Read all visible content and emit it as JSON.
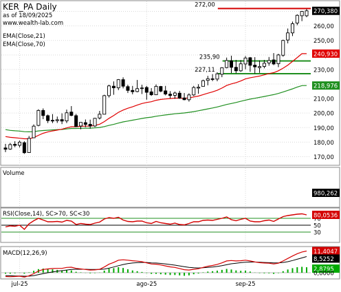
{
  "header": {
    "symbol": "KER_PA Daily",
    "as_of": "as of 18/09/2025",
    "website": "www.wealth-lab.com"
  },
  "colors": {
    "up": "#000000",
    "down": "#000000",
    "ema_fast": "#e00000",
    "ema_slow": "#1f8f1f",
    "volume": "#00aa00",
    "rsi": "#d40000",
    "macd": "#d40000",
    "macd_signal": "#000000",
    "hist": "#00aa00",
    "level_red": "#d40000",
    "level_green": "#1f8f1f",
    "price_badge_bg": "#000000",
    "ema21_badge_bg": "#e00000",
    "ema70_badge_bg": "#1f8f1f"
  },
  "chart_data": [
    {
      "type": "candlestick",
      "title": "KER_PA Daily",
      "ylim": [
        165,
        275
      ],
      "yticks": [
        "270,00",
        "260,00",
        "250,00",
        "240,00",
        "230,00",
        "220,00",
        "210,00",
        "200,00",
        "190,00",
        "180,00",
        "170,00"
      ],
      "ytick_values": [
        270,
        260,
        250,
        240,
        230,
        220,
        210,
        200,
        190,
        180,
        170
      ],
      "x_labels": [
        "jul-25",
        "ago-25",
        "sep-25"
      ],
      "x_label_bar_index": [
        3,
        30,
        51
      ],
      "current_price_label": "270,380",
      "ema21_label": "240,930",
      "ema70_label": "218,976",
      "legend": [
        "EMA(Close,21)",
        "EMA(Close,70)"
      ],
      "levels": [
        {
          "label": "272,00",
          "value": 272.0,
          "color": "red"
        },
        {
          "label": "235,90",
          "value": 235.9,
          "color": "green"
        },
        {
          "label": "227,11",
          "value": 227.11,
          "color": "green"
        }
      ],
      "ohlc": [
        [
          176.0,
          178.8,
          173.1,
          175.1
        ],
        [
          175.2,
          179.4,
          174.7,
          178.3
        ],
        [
          178.5,
          180.6,
          176.5,
          177.8
        ],
        [
          177.8,
          181.0,
          176.3,
          180.0
        ],
        [
          179.6,
          180.6,
          171.9,
          172.7
        ],
        [
          172.8,
          184.2,
          172.7,
          182.6
        ],
        [
          183.0,
          192.2,
          183.0,
          191.0
        ],
        [
          191.5,
          202.6,
          190.9,
          201.8
        ],
        [
          201.8,
          203.2,
          195.8,
          198.3
        ],
        [
          198.2,
          199.0,
          193.1,
          194.8
        ],
        [
          195.0,
          199.3,
          193.1,
          194.9
        ],
        [
          194.8,
          197.6,
          193.2,
          195.4
        ],
        [
          195.5,
          199.8,
          192.4,
          194.5
        ],
        [
          194.6,
          202.4,
          193.1,
          200.2
        ],
        [
          200.7,
          204.8,
          197.8,
          198.4
        ],
        [
          198.2,
          199.4,
          190.5,
          190.7
        ],
        [
          191.1,
          193.7,
          188.8,
          193.6
        ],
        [
          193.4,
          195.6,
          190.3,
          192.2
        ],
        [
          192.3,
          195.5,
          189.3,
          191.1
        ],
        [
          191.1,
          196.7,
          190.3,
          196.4
        ],
        [
          196.6,
          201.5,
          195.6,
          199.2
        ],
        [
          199.2,
          212.6,
          199.2,
          212.0
        ],
        [
          212.0,
          219.5,
          210.7,
          218.7
        ],
        [
          218.5,
          221.8,
          212.6,
          217.4
        ],
        [
          217.4,
          223.4,
          215.8,
          223.0
        ],
        [
          223.0,
          224.6,
          217.0,
          218.5
        ],
        [
          218.2,
          219.5,
          213.8,
          215.6
        ],
        [
          215.6,
          218.7,
          212.9,
          214.7
        ],
        [
          214.8,
          222.8,
          214.3,
          216.8
        ],
        [
          216.9,
          219.5,
          213.1,
          217.3
        ],
        [
          217.6,
          218.7,
          209.2,
          214.3
        ],
        [
          214.6,
          217.2,
          211.8,
          212.6
        ],
        [
          212.6,
          219.7,
          212.6,
          218.4
        ],
        [
          218.3,
          218.7,
          214.3,
          215.1
        ],
        [
          215.3,
          218.7,
          212.2,
          213.1
        ],
        [
          213.0,
          215.1,
          210.2,
          212.1
        ],
        [
          212.2,
          214.8,
          209.8,
          213.8
        ],
        [
          213.7,
          215.3,
          209.8,
          210.3
        ],
        [
          210.4,
          213.8,
          208.8,
          209.2
        ],
        [
          209.2,
          213.6,
          207.9,
          212.5
        ],
        [
          212.5,
          218.7,
          211.7,
          217.6
        ],
        [
          217.2,
          219.9,
          213.3,
          217.8
        ],
        [
          218.4,
          223.0,
          218.4,
          222.3
        ],
        [
          222.5,
          225.6,
          219.1,
          223.6
        ],
        [
          223.6,
          226.8,
          222.0,
          223.4
        ],
        [
          223.4,
          228.1,
          221.9,
          227.0
        ],
        [
          226.7,
          231.6,
          224.7,
          231.2
        ],
        [
          231.3,
          238.2,
          230.8,
          236.2
        ],
        [
          236.0,
          239.5,
          227.6,
          231.5
        ],
        [
          231.5,
          236.6,
          227.4,
          229.1
        ],
        [
          229.1,
          236.5,
          228.4,
          233.9
        ],
        [
          233.8,
          239.2,
          230.2,
          237.9
        ],
        [
          238.1,
          238.6,
          228.4,
          232.9
        ],
        [
          233.0,
          238.5,
          227.2,
          231.8
        ],
        [
          231.3,
          236.3,
          227.7,
          232.0
        ],
        [
          232.1,
          236.6,
          230.8,
          234.3
        ],
        [
          234.5,
          238.6,
          232.6,
          236.2
        ],
        [
          236.6,
          241.3,
          233.0,
          233.8
        ],
        [
          234.0,
          240.8,
          231.6,
          240.0
        ],
        [
          239.8,
          250.5,
          238.8,
          250.0
        ],
        [
          250.3,
          258.2,
          248.0,
          255.2
        ],
        [
          255.2,
          263.0,
          253.0,
          261.5
        ],
        [
          262.0,
          268.0,
          260.5,
          267.3
        ],
        [
          267.0,
          270.3,
          263.3,
          270.0
        ],
        [
          267.0,
          271.7,
          266.0,
          270.38
        ]
      ],
      "ema21": [
        183.8,
        183.3,
        183.0,
        182.7,
        182.3,
        182.3,
        183.1,
        184.7,
        186.1,
        187.0,
        187.7,
        188.3,
        188.9,
        189.8,
        190.6,
        190.6,
        190.9,
        191.0,
        191.0,
        191.5,
        192.3,
        194.1,
        196.4,
        198.3,
        200.5,
        202.1,
        203.3,
        204.3,
        205.5,
        206.6,
        207.3,
        207.8,
        208.8,
        209.4,
        209.7,
        210.0,
        210.3,
        210.3,
        210.2,
        210.4,
        211.1,
        211.7,
        212.7,
        213.7,
        214.6,
        215.7,
        217.2,
        219.0,
        220.1,
        220.9,
        222.1,
        223.5,
        224.3,
        224.9,
        225.5,
        226.3,
        227.2,
        227.8,
        229.1,
        230.9,
        233.0,
        235.6,
        238.2,
        240.9,
        240.93
      ],
      "ema70": [
        188.6,
        188.1,
        187.8,
        187.6,
        187.2,
        187.1,
        187.2,
        187.7,
        188.0,
        188.2,
        188.4,
        188.6,
        188.7,
        189.1,
        189.4,
        189.4,
        189.5,
        189.6,
        189.6,
        189.8,
        190.1,
        190.7,
        191.5,
        192.2,
        193.1,
        193.9,
        194.5,
        195.1,
        195.7,
        196.3,
        196.8,
        197.2,
        197.8,
        198.3,
        198.7,
        199.1,
        199.5,
        199.8,
        200.1,
        200.5,
        201.0,
        201.6,
        202.2,
        202.9,
        203.5,
        204.2,
        205.0,
        205.9,
        206.6,
        207.3,
        208.1,
        208.9,
        209.6,
        210.2,
        210.8,
        211.4,
        212.1,
        212.7,
        213.5,
        214.5,
        215.6,
        216.7,
        217.9,
        218.9,
        218.976
      ]
    },
    {
      "type": "bar",
      "title": "Volume",
      "current_label": "980,262",
      "values": [
        0,
        0,
        0,
        0,
        0,
        0,
        0,
        0,
        0,
        0,
        0,
        0,
        0,
        0,
        0,
        0,
        0,
        0,
        0,
        0,
        0,
        0,
        0,
        0,
        0,
        0,
        0,
        0,
        0,
        0,
        0,
        0,
        0,
        0,
        0,
        0,
        0,
        0,
        0,
        0,
        0,
        0,
        0,
        0,
        0,
        0,
        0,
        0,
        0,
        0,
        0,
        0,
        0,
        0,
        0,
        0,
        0,
        0,
        0,
        0,
        0,
        0,
        0,
        0,
        0
      ]
    },
    {
      "type": "line",
      "title": "RSI(Close,14), SC>70, SC<30",
      "current_label": "80,0536",
      "ylim": [
        0,
        100
      ],
      "yticks": [
        "70",
        "50",
        "30"
      ],
      "ytick_values": [
        70,
        50,
        30
      ],
      "values": [
        45,
        48,
        47,
        50,
        38,
        54,
        63,
        70,
        65,
        60,
        60,
        61,
        59,
        64,
        62,
        52,
        55,
        53,
        52,
        56,
        59,
        68,
        72,
        70,
        73,
        65,
        61,
        60,
        62,
        62,
        57,
        55,
        61,
        57,
        55,
        53,
        56,
        52,
        51,
        55,
        60,
        60,
        64,
        65,
        64,
        67,
        70,
        74,
        66,
        63,
        67,
        70,
        62,
        60,
        60,
        63,
        65,
        61,
        68,
        75,
        78,
        80,
        82,
        83,
        80.05
      ]
    },
    {
      "type": "line",
      "title": "MACD(12,26,9)",
      "macd_label": "11,4047",
      "signal_label": "8,5252",
      "hist_label": "2,8795",
      "zero_label": "0,0000",
      "macd": [
        -2.0,
        -2.1,
        -2.0,
        -1.8,
        -2.3,
        -1.6,
        -0.5,
        0.9,
        1.7,
        2.0,
        2.2,
        2.3,
        2.3,
        2.8,
        2.9,
        2.3,
        2.0,
        1.7,
        1.4,
        1.5,
        1.8,
        3.0,
        4.5,
        5.4,
        6.6,
        6.8,
        6.6,
        6.3,
        6.1,
        5.8,
        5.2,
        4.6,
        4.5,
        4.1,
        3.6,
        3.1,
        2.8,
        2.2,
        1.6,
        1.4,
        1.8,
        2.1,
        2.8,
        3.4,
        3.8,
        4.4,
        5.2,
        6.2,
        6.4,
        6.2,
        6.3,
        6.6,
        6.2,
        5.7,
        5.3,
        5.1,
        5.0,
        4.6,
        5.0,
        6.2,
        7.5,
        8.8,
        10.0,
        10.9,
        11.4047
      ],
      "signal": [
        -1.5,
        -1.6,
        -1.7,
        -1.7,
        -1.8,
        -1.8,
        -1.5,
        -1.0,
        -0.5,
        0.0,
        0.4,
        0.8,
        1.1,
        1.4,
        1.7,
        1.8,
        1.8,
        1.8,
        1.7,
        1.7,
        1.7,
        1.9,
        2.4,
        3.0,
        3.7,
        4.3,
        4.8,
        5.1,
        5.3,
        5.4,
        5.4,
        5.2,
        5.1,
        4.9,
        4.6,
        4.3,
        4.0,
        3.6,
        3.2,
        2.8,
        2.6,
        2.5,
        2.6,
        2.8,
        3.0,
        3.3,
        3.7,
        4.2,
        4.7,
        5.0,
        5.3,
        5.5,
        5.6,
        5.6,
        5.5,
        5.4,
        5.3,
        5.2,
        5.2,
        5.4,
        5.8,
        6.4,
        7.1,
        7.8,
        8.5252
      ]
    }
  ]
}
